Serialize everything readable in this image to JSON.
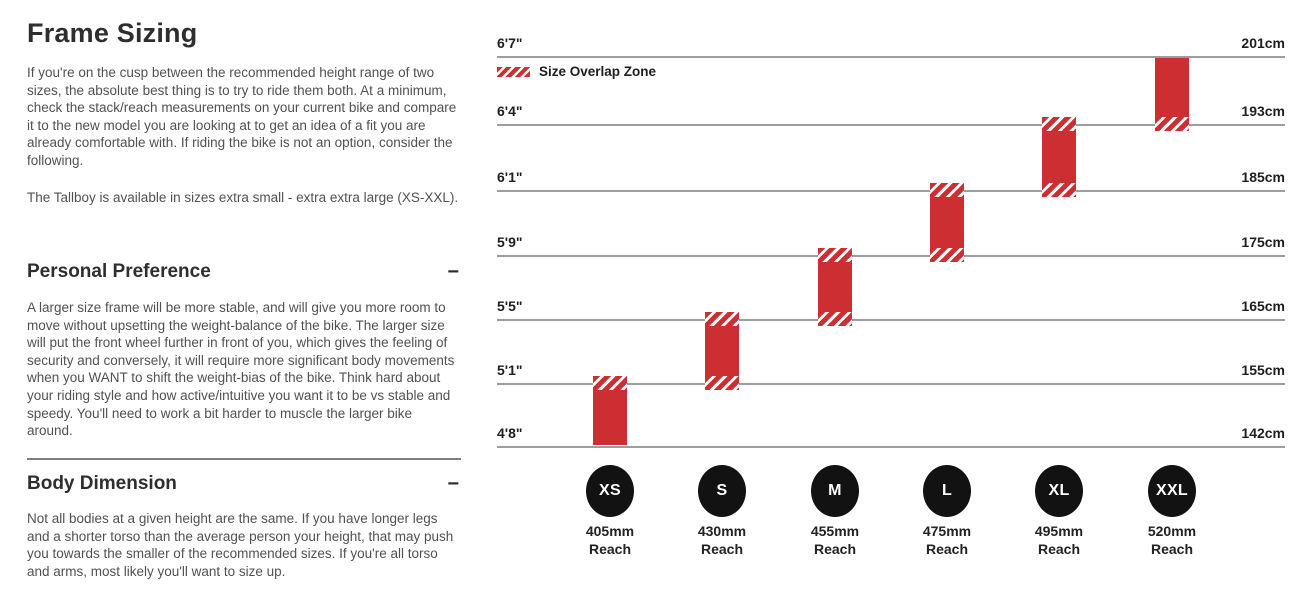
{
  "page": {
    "title": "Frame Sizing"
  },
  "intro": {
    "p1": "If you're on the cusp between the recommended height range of two sizes, the absolute best thing is to try to ride them both. At a minimum, check the stack/reach measurements on your current bike and compare it to the new model you are looking at to get an idea of a fit you are already comfortable with. If riding the bike is not an option, consider the following.",
    "p2": "The Tallboy is available in sizes extra small - extra extra large (XS-XXL)."
  },
  "sections": [
    {
      "heading": "Personal Preference",
      "collapse_glyph": "−",
      "body": "A larger size frame will be more stable, and will give you more room to move without upsetting the weight-balance of the bike. The larger size will put the front wheel further in front of you, which gives the feeling of security and conversely, it will require more significant body movements when you WANT to shift the weight-bias of the bike. Think hard about your riding style and how active/intuitive you want it to be vs stable and speedy. You'll need to work a bit harder to muscle the larger bike around."
    },
    {
      "heading": "Body Dimension",
      "collapse_glyph": "−",
      "body": "Not all bodies at a given height are the same. If you have longer legs and a shorter torso than the average person your height, that may push you towards the smaller of the recommended sizes. If you're all torso and arms, most likely you'll want to size up."
    }
  ],
  "chart_data": {
    "type": "bar",
    "title": "Frame size vs rider height ranges",
    "legend": {
      "label": "Size Overlap Zone"
    },
    "reach_word": "Reach",
    "gridlines": [
      {
        "ft": "6'7\"",
        "cm": "201cm"
      },
      {
        "ft": "6'4\"",
        "cm": "193cm"
      },
      {
        "ft": "6'1\"",
        "cm": "185cm"
      },
      {
        "ft": "5'9\"",
        "cm": "175cm"
      },
      {
        "ft": "5'5\"",
        "cm": "165cm"
      },
      {
        "ft": "5'1\"",
        "cm": "155cm"
      },
      {
        "ft": "4'8\"",
        "cm": "142cm"
      }
    ],
    "sizes": [
      {
        "label": "XS",
        "reach_mm": "405mm",
        "height_ft": [
          "4'8\"",
          "5'1\""
        ],
        "height_cm": [
          142,
          155
        ],
        "overlap_top": true,
        "overlap_bottom": false
      },
      {
        "label": "S",
        "reach_mm": "430mm",
        "height_ft": [
          "5'1\"",
          "5'5\""
        ],
        "height_cm": [
          155,
          165
        ],
        "overlap_top": true,
        "overlap_bottom": true
      },
      {
        "label": "M",
        "reach_mm": "455mm",
        "height_ft": [
          "5'5\"",
          "5'9\""
        ],
        "height_cm": [
          165,
          175
        ],
        "overlap_top": true,
        "overlap_bottom": true
      },
      {
        "label": "L",
        "reach_mm": "475mm",
        "height_ft": [
          "5'9\"",
          "6'1\""
        ],
        "height_cm": [
          175,
          185
        ],
        "overlap_top": true,
        "overlap_bottom": true
      },
      {
        "label": "XL",
        "reach_mm": "495mm",
        "height_ft": [
          "6'1\"",
          "6'4\""
        ],
        "height_cm": [
          185,
          193
        ],
        "overlap_top": true,
        "overlap_bottom": true
      },
      {
        "label": "XXL",
        "reach_mm": "520mm",
        "height_ft": [
          "6'4\"",
          "6'7\""
        ],
        "height_cm": [
          193,
          201
        ],
        "overlap_top": false,
        "overlap_bottom": true
      }
    ],
    "colors": {
      "bar": "#cc2e31",
      "gridline": "#9d9d9d",
      "circle": "#121212"
    },
    "axis_ranges": {
      "cm": [
        142,
        201
      ],
      "ft": [
        "4'8\"",
        "6'7\""
      ]
    },
    "grid": true,
    "legend_position": "top-left"
  }
}
